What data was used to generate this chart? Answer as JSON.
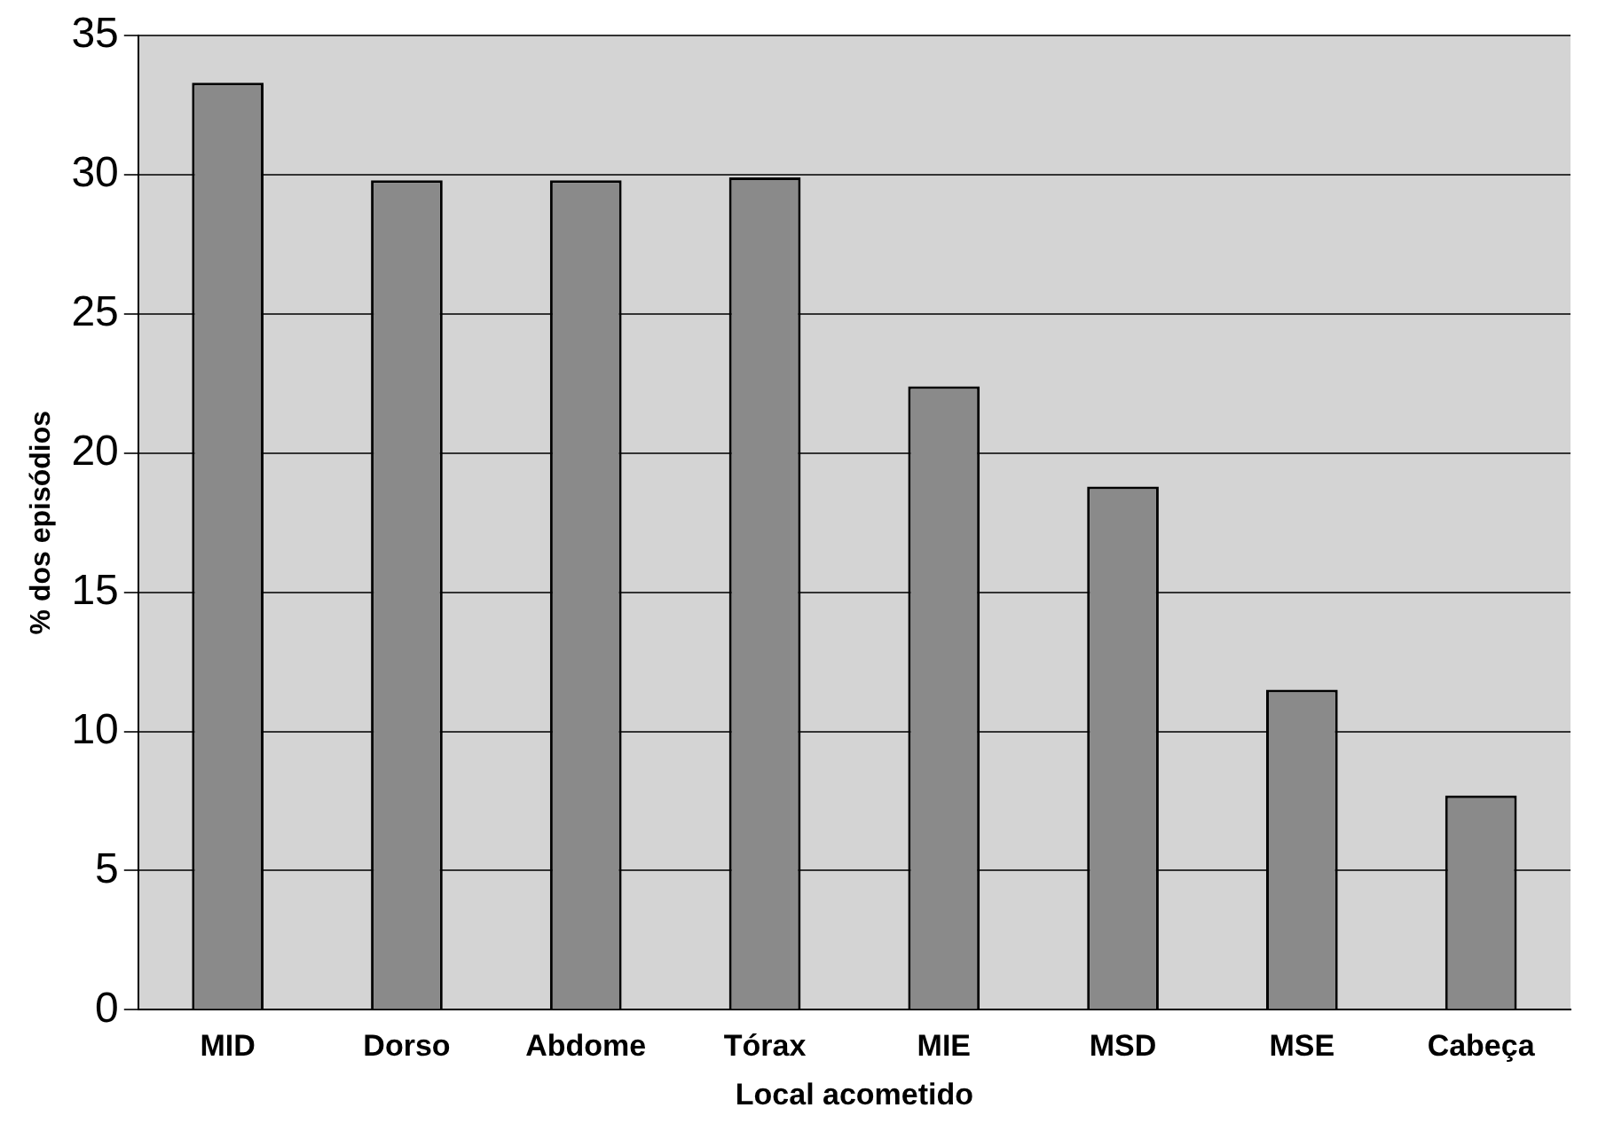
{
  "chart_data": {
    "type": "bar",
    "xlabel": "Local acometido",
    "ylabel": "% dos episódios",
    "categories": [
      "MID",
      "Dorso",
      "Abdome",
      "Tórax",
      "MIE",
      "MSD",
      "MSE",
      "Cabeça"
    ],
    "values": [
      33.3,
      29.8,
      29.8,
      29.9,
      22.4,
      18.8,
      11.5,
      7.7
    ],
    "color": "#8a8a8a",
    "ylim": [
      0,
      35
    ],
    "yticks": [
      0,
      5,
      10,
      15,
      20,
      25,
      30,
      35
    ],
    "grid": "y",
    "legend": false
  }
}
